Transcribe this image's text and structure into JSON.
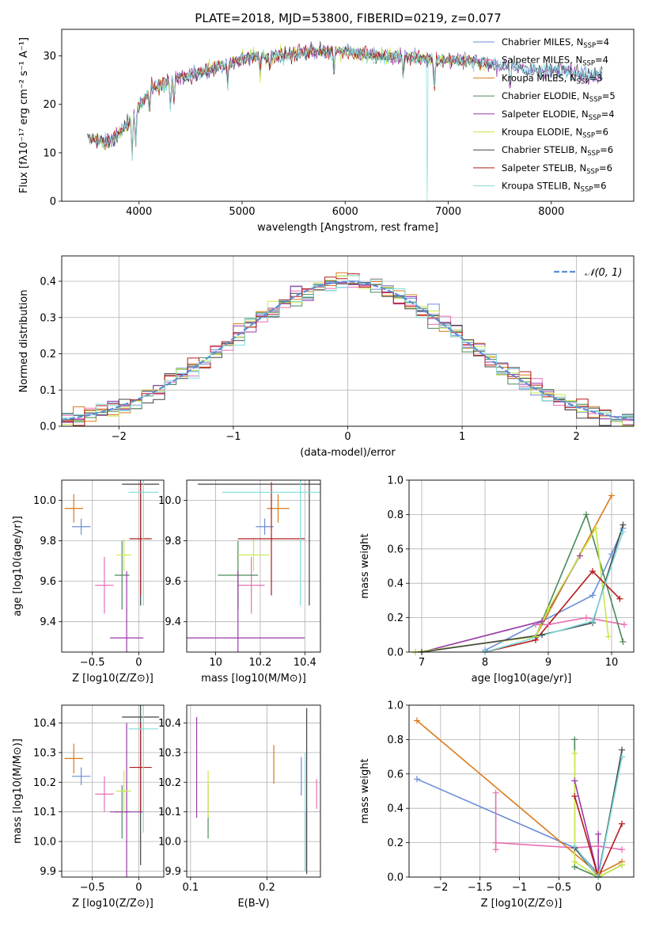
{
  "figure": {
    "title": "PLATE=2018, MJD=53800, FIBERID=0219, z=0.077"
  },
  "chart_data": [
    {
      "id": "spectrum",
      "type": "line",
      "xlabel": "wavelength [Angstrom, rest frame]",
      "ylabel": "Flux [fλ10⁻¹⁷ erg cm⁻² s⁻¹ A⁻¹]",
      "xlim": [
        3250,
        8800
      ],
      "ylim": [
        0,
        35.5
      ],
      "xticks": [
        4000,
        5000,
        6000,
        7000,
        8000
      ],
      "yticks": [
        0,
        10,
        20,
        30
      ],
      "grid": false,
      "legend_position": "right",
      "legend": [
        {
          "label": "Chabrier MILES, N_SSP=4",
          "color": "#6b8ed6"
        },
        {
          "label": "Salpeter MILES, N_SSP=4",
          "color": "#e86fb2"
        },
        {
          "label": "Kroupa MILES, N_SSP=3",
          "color": "#d97a1a"
        },
        {
          "label": "Chabrier ELODIE, N_SSP=5",
          "color": "#4a8a5a"
        },
        {
          "label": "Salpeter ELODIE, N_SSP=4",
          "color": "#9a3aa8"
        },
        {
          "label": "Kroupa ELODIE, N_SSP=6",
          "color": "#c8e84a"
        },
        {
          "label": "Chabrier STELIB, N_SSP=6",
          "color": "#444444"
        },
        {
          "label": "Salpeter STELIB, N_SSP=6",
          "color": "#b41a1a"
        },
        {
          "label": "Kroupa STELIB, N_SSP=6",
          "color": "#7fdcdc"
        }
      ],
      "data_trend": {
        "x": [
          3500,
          3700,
          3900,
          4100,
          4300,
          4500,
          4800,
          5100,
          5400,
          5700,
          6000,
          6300,
          6600,
          6900,
          7200,
          7500,
          7800,
          8100,
          8400,
          8500
        ],
        "y": [
          13,
          12,
          16,
          23,
          25,
          26,
          28,
          30,
          30,
          31,
          31,
          30,
          30,
          29,
          29,
          28,
          27,
          27,
          26,
          26
        ]
      }
    },
    {
      "id": "residuals",
      "type": "histogram",
      "xlabel": "(data-model)/error",
      "ylabel": "Normed distribution",
      "xlim": [
        -2.5,
        2.5
      ],
      "ylim": [
        0,
        0.47
      ],
      "xticks": [
        -2,
        -1,
        0,
        1,
        2
      ],
      "yticks": [
        0.0,
        0.1,
        0.2,
        0.3,
        0.4
      ],
      "grid": true,
      "legend_position": "top-right",
      "reference_curve": {
        "label": "𝒩(0, 1)",
        "color": "#5b8ed6",
        "mean": 0,
        "sigma": 1
      },
      "bin_width": 0.1
    },
    {
      "id": "age_vs_Z",
      "type": "errorbar",
      "xlabel": "Z [log10(Z/Z⊙)]",
      "ylabel": "age  [log10(age/yr)]",
      "xlim": [
        -0.83,
        0.27
      ],
      "ylim": [
        9.25,
        10.1
      ],
      "xticks": [
        -0.5,
        0.0
      ],
      "yticks": [
        9.4,
        9.6,
        9.8,
        10.0
      ],
      "grid": true,
      "points": [
        {
          "x": -0.62,
          "y": 9.87,
          "xerr": 0.1,
          "yerr": 0.04,
          "color": "#6b8ed6"
        },
        {
          "x": -0.37,
          "y": 9.58,
          "xerr": 0.1,
          "yerr": 0.14,
          "color": "#e86fb2"
        },
        {
          "x": -0.7,
          "y": 9.96,
          "xerr": 0.1,
          "yerr": 0.07,
          "color": "#d97a1a"
        },
        {
          "x": -0.18,
          "y": 9.63,
          "xerr": 0.08,
          "yerr": 0.17,
          "color": "#4a8a5a"
        },
        {
          "x": -0.13,
          "y": 9.32,
          "xerr": 0.18,
          "yerr": 0.33,
          "color": "#9a3aa8"
        },
        {
          "x": -0.16,
          "y": 9.73,
          "xerr": 0.08,
          "yerr": 0.08,
          "color": "#c8e84a"
        },
        {
          "x": 0.02,
          "y": 10.08,
          "xerr": 0.2,
          "yerr": 0.6,
          "color": "#444444"
        },
        {
          "x": 0.02,
          "y": 9.81,
          "xerr": 0.12,
          "yerr": 0.28,
          "color": "#b41a1a"
        },
        {
          "x": 0.05,
          "y": 10.04,
          "xerr": 0.16,
          "yerr": 0.56,
          "color": "#7fdcdc"
        }
      ]
    },
    {
      "id": "age_vs_mass",
      "type": "errorbar",
      "xlabel": "mass [log10(M/M⊙)]",
      "ylabel": "",
      "xlim": [
        9.87,
        10.47
      ],
      "ylim": [
        9.25,
        10.1
      ],
      "xticks": [
        10.0,
        10.2,
        10.4
      ],
      "yticks": [
        9.4,
        9.6,
        9.8,
        10.0
      ],
      "grid": true,
      "points": [
        {
          "x": 10.22,
          "y": 9.87,
          "xerr": 0.04,
          "yerr": 0.04,
          "color": "#6b8ed6"
        },
        {
          "x": 10.16,
          "y": 9.58,
          "xerr": 0.06,
          "yerr": 0.14,
          "color": "#e86fb2"
        },
        {
          "x": 10.28,
          "y": 9.96,
          "xerr": 0.05,
          "yerr": 0.07,
          "color": "#d97a1a"
        },
        {
          "x": 10.1,
          "y": 9.63,
          "xerr": 0.09,
          "yerr": 0.17,
          "color": "#4a8a5a"
        },
        {
          "x": 10.1,
          "y": 9.32,
          "xerr": 0.3,
          "yerr": 0.33,
          "color": "#9a3aa8"
        },
        {
          "x": 10.17,
          "y": 9.73,
          "xerr": 0.07,
          "yerr": 0.08,
          "color": "#c8e84a"
        },
        {
          "x": 10.42,
          "y": 10.08,
          "xerr": 0.5,
          "yerr": 0.6,
          "color": "#444444"
        },
        {
          "x": 10.25,
          "y": 9.81,
          "xerr": 0.15,
          "yerr": 0.28,
          "color": "#b41a1a"
        },
        {
          "x": 10.38,
          "y": 10.04,
          "xerr": 0.35,
          "yerr": 0.56,
          "color": "#7fdcdc"
        }
      ]
    },
    {
      "id": "weight_vs_age",
      "type": "line",
      "xlabel": "age  [log10(age/yr)]",
      "ylabel": "mass weight",
      "xlim": [
        6.8,
        10.35
      ],
      "ylim": [
        0,
        1.0
      ],
      "xticks": [
        7,
        8,
        9,
        10
      ],
      "yticks": [
        0.0,
        0.2,
        0.4,
        0.6,
        0.8,
        1.0
      ],
      "grid": true,
      "series": [
        {
          "color": "#6b8ed6",
          "x": [
            8.0,
            9.7,
            10.0,
            10.18
          ],
          "y": [
            0.01,
            0.33,
            0.57,
            0.72
          ]
        },
        {
          "color": "#e86fb2",
          "x": [
            8.8,
            9.0,
            9.6,
            10.2
          ],
          "y": [
            0.16,
            0.16,
            0.2,
            0.16
          ]
        },
        {
          "color": "#d97a1a",
          "x": [
            8.8,
            10.0
          ],
          "y": [
            0.09,
            0.91
          ]
        },
        {
          "color": "#4a8a5a",
          "x": [
            6.9,
            8.8,
            9.6,
            10.18
          ],
          "y": [
            0.0,
            0.09,
            0.8,
            0.06
          ]
        },
        {
          "color": "#9a3aa8",
          "x": [
            7.0,
            8.9,
            9.5
          ],
          "y": [
            0.0,
            0.18,
            0.56
          ]
        },
        {
          "color": "#c8e84a",
          "x": [
            6.9,
            8.8,
            9.0,
            9.75,
            9.95
          ],
          "y": [
            0.0,
            0.09,
            0.25,
            0.72,
            0.09
          ]
        },
        {
          "color": "#444444",
          "x": [
            7.0,
            8.9,
            9.7,
            10.18
          ],
          "y": [
            0.0,
            0.1,
            0.17,
            0.74
          ]
        },
        {
          "color": "#b41a1a",
          "x": [
            8.0,
            8.8,
            9.7,
            10.13
          ],
          "y": [
            0.0,
            0.07,
            0.47,
            0.31
          ]
        },
        {
          "color": "#7fdcdc",
          "x": [
            8.0,
            9.7,
            10.18
          ],
          "y": [
            0.0,
            0.18,
            0.7
          ]
        }
      ]
    },
    {
      "id": "mass_vs_Z",
      "type": "errorbar",
      "xlabel": "Z [log10(Z/Z⊙)]",
      "ylabel": "mass [log10(M/M⊙)]",
      "xlim": [
        -0.83,
        0.27
      ],
      "ylim": [
        9.88,
        10.46
      ],
      "xticks": [
        -0.5,
        0.0
      ],
      "yticks": [
        9.9,
        10.0,
        10.1,
        10.2,
        10.3,
        10.4
      ],
      "grid": true,
      "points": [
        {
          "x": -0.62,
          "y": 10.22,
          "xerr": 0.1,
          "yerr": 0.03,
          "color": "#6b8ed6"
        },
        {
          "x": -0.37,
          "y": 10.16,
          "xerr": 0.1,
          "yerr": 0.06,
          "color": "#e86fb2"
        },
        {
          "x": -0.7,
          "y": 10.28,
          "xerr": 0.1,
          "yerr": 0.05,
          "color": "#d97a1a"
        },
        {
          "x": -0.18,
          "y": 10.1,
          "xerr": 0.08,
          "yerr": 0.09,
          "color": "#4a8a5a"
        },
        {
          "x": -0.13,
          "y": 10.1,
          "xerr": 0.18,
          "yerr": 0.3,
          "color": "#9a3aa8"
        },
        {
          "x": -0.16,
          "y": 10.17,
          "xerr": 0.08,
          "yerr": 0.07,
          "color": "#c8e84a"
        },
        {
          "x": 0.02,
          "y": 10.42,
          "xerr": 0.2,
          "yerr": 0.5,
          "color": "#444444"
        },
        {
          "x": 0.02,
          "y": 10.25,
          "xerr": 0.12,
          "yerr": 0.15,
          "color": "#b41a1a"
        },
        {
          "x": 0.05,
          "y": 10.38,
          "xerr": 0.16,
          "yerr": 0.35,
          "color": "#7fdcdc"
        }
      ]
    },
    {
      "id": "mass_vs_EBV",
      "type": "errorbar",
      "xlabel": "E(B-V)",
      "ylabel": "",
      "xlim": [
        0.095,
        0.27
      ],
      "ylim": [
        9.88,
        10.46
      ],
      "xticks": [
        0.1,
        0.2
      ],
      "yticks": [
        9.9,
        10.0,
        10.1,
        10.2,
        10.3,
        10.4
      ],
      "grid": true,
      "points": [
        {
          "x": 0.245,
          "y": 10.22,
          "xerr": 0.0,
          "yerr": 0.065,
          "color": "#6b8ed6"
        },
        {
          "x": 0.265,
          "y": 10.16,
          "xerr": 0.0,
          "yerr": 0.05,
          "color": "#e86fb2"
        },
        {
          "x": 0.209,
          "y": 10.26,
          "xerr": 0.0,
          "yerr": 0.065,
          "color": "#d97a1a"
        },
        {
          "x": 0.123,
          "y": 10.1,
          "xerr": 0.0,
          "yerr": 0.09,
          "color": "#4a8a5a"
        },
        {
          "x": 0.108,
          "y": 10.25,
          "xerr": 0.0,
          "yerr": 0.17,
          "color": "#9a3aa8"
        },
        {
          "x": 0.123,
          "y": 10.16,
          "xerr": 0.0,
          "yerr": 0.08,
          "color": "#c8e84a"
        },
        {
          "x": 0.252,
          "y": 10.17,
          "xerr": 0.0,
          "yerr": 0.28,
          "color": "#444444"
        },
        {
          "x": 0.25,
          "y": 10.0,
          "xerr": 0.0,
          "yerr": 0.1,
          "color": "#b41a1a"
        },
        {
          "x": 0.25,
          "y": 10.1,
          "xerr": 0.0,
          "yerr": 0.2,
          "color": "#7fdcdc"
        }
      ]
    },
    {
      "id": "weight_vs_Z",
      "type": "line",
      "xlabel": "Z [log10(Z/Z⊙)]",
      "ylabel": "mass weight",
      "xlim": [
        -2.4,
        0.45
      ],
      "ylim": [
        0,
        1.0
      ],
      "xticks": [
        -2.0,
        -1.5,
        -1.0,
        -0.5,
        0.0
      ],
      "yticks": [
        0.0,
        0.2,
        0.4,
        0.6,
        0.8,
        1.0
      ],
      "grid": true,
      "series": [
        {
          "color": "#6b8ed6",
          "x": [
            -2.3,
            -0.3,
            0.0,
            0.3
          ],
          "y": [
            0.57,
            0.17,
            0.02,
            0.7
          ]
        },
        {
          "color": "#e86fb2",
          "x": [
            -1.3,
            -1.3,
            -1.3,
            -0.3,
            0.0,
            0.3
          ],
          "y": [
            0.16,
            0.49,
            0.2,
            0.17,
            0.18,
            0.16
          ]
        },
        {
          "color": "#d97a1a",
          "x": [
            -2.3,
            0.0,
            0.3
          ],
          "y": [
            0.91,
            0.02,
            0.09
          ]
        },
        {
          "color": "#4a8a5a",
          "x": [
            -0.3,
            -0.3,
            0.0,
            0.3
          ],
          "y": [
            0.8,
            0.06,
            0.0,
            0.07
          ]
        },
        {
          "color": "#9a3aa8",
          "x": [
            -0.3,
            0.0,
            0.0
          ],
          "y": [
            0.56,
            0.0,
            0.25
          ]
        },
        {
          "color": "#c8e84a",
          "x": [
            -0.3,
            -0.3,
            0.0,
            0.3
          ],
          "y": [
            0.72,
            0.09,
            0.0,
            0.07
          ]
        },
        {
          "color": "#444444",
          "x": [
            -0.3,
            0.0,
            0.3
          ],
          "y": [
            0.17,
            0.0,
            0.74
          ]
        },
        {
          "color": "#b41a1a",
          "x": [
            -0.3,
            0.0,
            0.3
          ],
          "y": [
            0.47,
            0.0,
            0.31
          ]
        },
        {
          "color": "#7fdcdc",
          "x": [
            -0.3,
            0.0,
            0.3
          ],
          "y": [
            0.18,
            0.0,
            0.7
          ]
        }
      ]
    }
  ]
}
